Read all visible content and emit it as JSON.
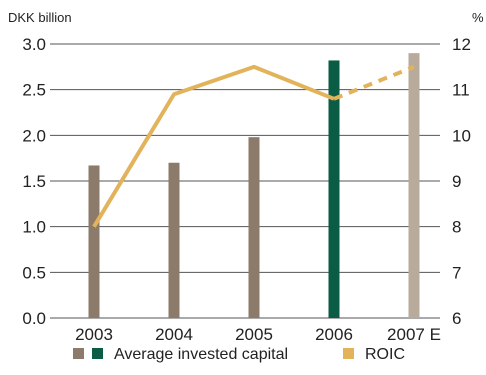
{
  "chart_data": {
    "type": "bar",
    "categories": [
      "2003",
      "2004",
      "2005",
      "2006",
      "2007 E"
    ],
    "left_axis": {
      "unit_label": "DKK billion",
      "ylim": [
        0,
        3.0
      ],
      "ticks": [
        "0.0",
        "0.5",
        "1.0",
        "1.5",
        "2.0",
        "2.5",
        "3.0"
      ]
    },
    "right_axis": {
      "unit_label": "%",
      "ylim": [
        6,
        12
      ],
      "ticks": [
        "6",
        "7",
        "8",
        "9",
        "10",
        "11",
        "12"
      ]
    },
    "series": [
      {
        "name": "Average invested capital",
        "kind": "bar",
        "axis": "left",
        "values": [
          1.67,
          1.7,
          1.98,
          2.82,
          2.9
        ],
        "colors": [
          "#8c7b6b",
          "#8c7b6b",
          "#8c7b6b",
          "#0a5c45",
          "#b8ab9c"
        ]
      },
      {
        "name": "ROIC",
        "kind": "line",
        "axis": "right",
        "values": [
          8.0,
          10.9,
          11.5,
          10.8,
          11.5
        ],
        "color": "#e3b35c",
        "dashed_last_segment": true
      }
    ],
    "legend": {
      "position": "bottom",
      "items": [
        {
          "label": "Average invested capital",
          "swatches": [
            "#8c7b6b",
            "#0a5c45"
          ]
        },
        {
          "label": "ROIC",
          "swatches": [
            "#e3b35c"
          ]
        }
      ]
    },
    "grid": true
  }
}
